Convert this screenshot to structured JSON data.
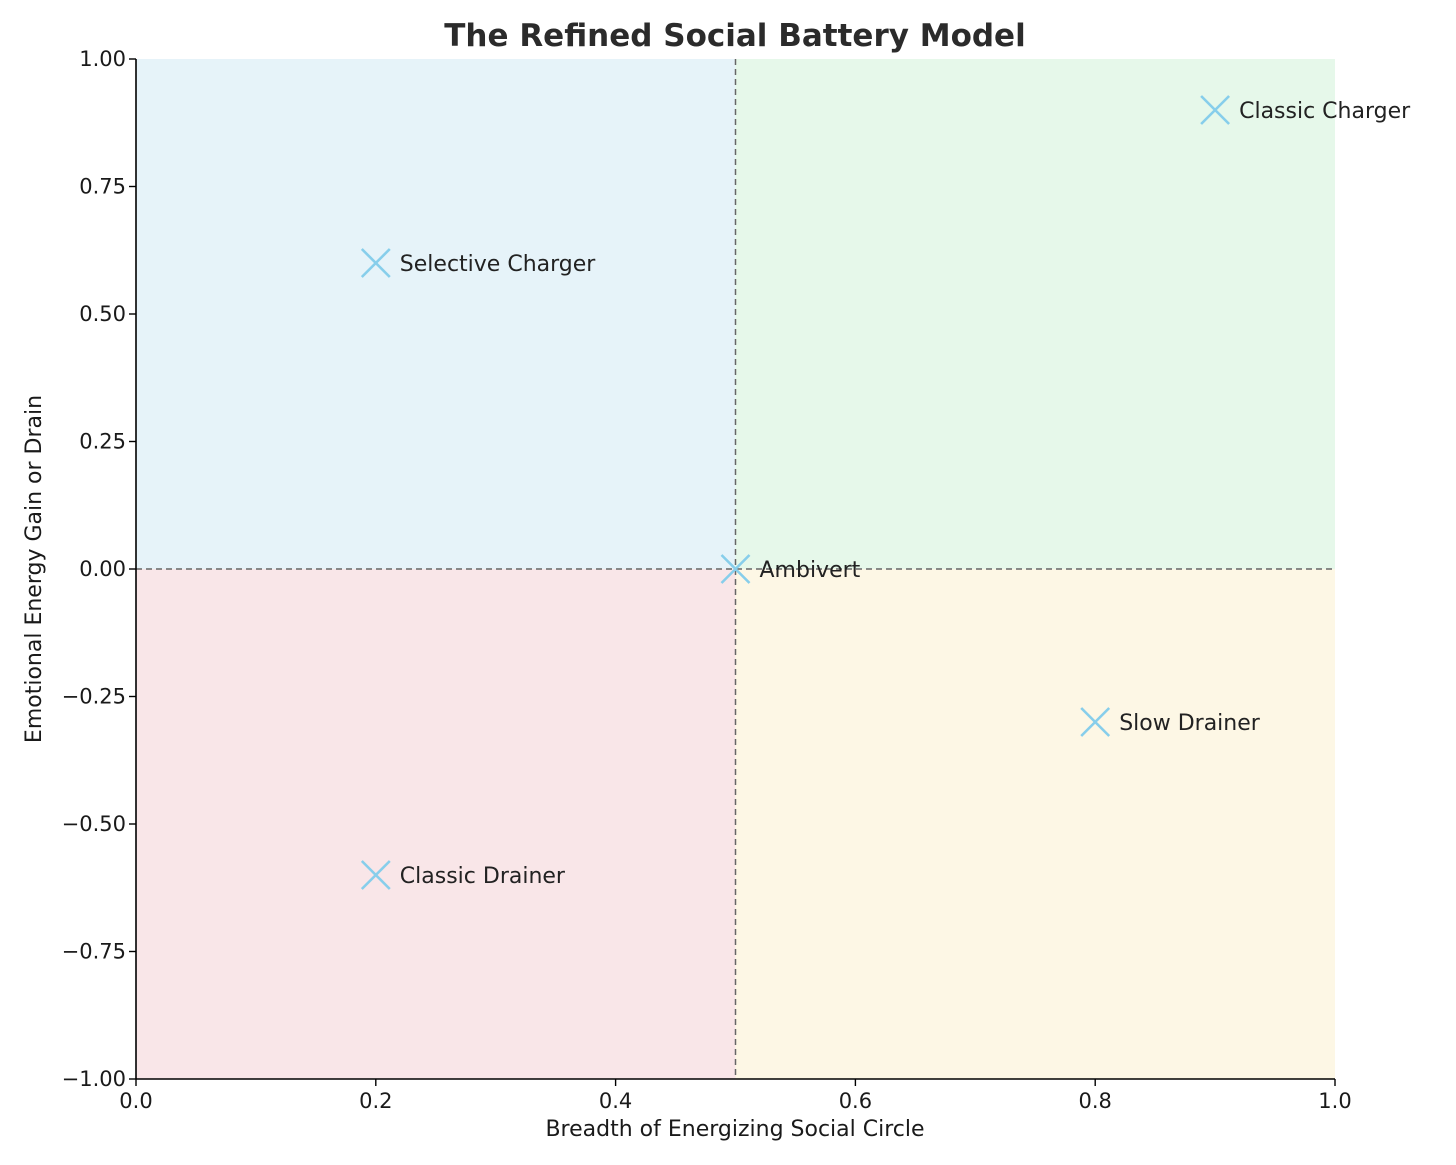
{
  "chart_data": {
    "type": "scatter",
    "title": "The Refined Social Battery Model",
    "xlabel": "Breadth of Energizing Social Circle",
    "ylabel": "Emotional Energy Gain or Drain",
    "xlim": [
      0.0,
      1.0
    ],
    "ylim": [
      -1.0,
      1.0
    ],
    "x_ticks": [
      "0.0",
      "0.2",
      "0.4",
      "0.6",
      "0.8",
      "1.0"
    ],
    "x_tick_values": [
      0.0,
      0.2,
      0.4,
      0.6,
      0.8,
      1.0
    ],
    "y_ticks": [
      "1.00",
      "0.75",
      "0.50",
      "0.25",
      "0.00",
      "−0.25",
      "−0.50",
      "−0.75",
      "−1.00"
    ],
    "y_tick_values": [
      1.0,
      0.75,
      0.5,
      0.25,
      0.0,
      -0.25,
      -0.5,
      -0.75,
      -1.0
    ],
    "grid": false,
    "marker": "x",
    "marker_color": "#87ceeb",
    "divider_lines": {
      "x": 0.5,
      "y": 0.0,
      "style": "dashed",
      "color": "#666666"
    },
    "quadrants": [
      {
        "id": "top-left",
        "x": [
          0.0,
          0.5
        ],
        "y": [
          0.0,
          1.0
        ],
        "color": "#e6f3f9"
      },
      {
        "id": "top-right",
        "x": [
          0.5,
          1.0
        ],
        "y": [
          0.0,
          1.0
        ],
        "color": "#e6f8ea"
      },
      {
        "id": "bottom-left",
        "x": [
          0.0,
          0.5
        ],
        "y": [
          -1.0,
          0.0
        ],
        "color": "#f9e6e8"
      },
      {
        "id": "bottom-right",
        "x": [
          0.5,
          1.0
        ],
        "y": [
          -1.0,
          0.0
        ],
        "color": "#fdf7e5"
      }
    ],
    "points": [
      {
        "label": "Classic Charger",
        "x": 0.9,
        "y": 0.9
      },
      {
        "label": "Selective Charger",
        "x": 0.2,
        "y": 0.6
      },
      {
        "label": "Ambivert",
        "x": 0.5,
        "y": 0.0
      },
      {
        "label": "Slow Drainer",
        "x": 0.8,
        "y": -0.3
      },
      {
        "label": "Classic Drainer",
        "x": 0.2,
        "y": -0.6
      }
    ]
  }
}
